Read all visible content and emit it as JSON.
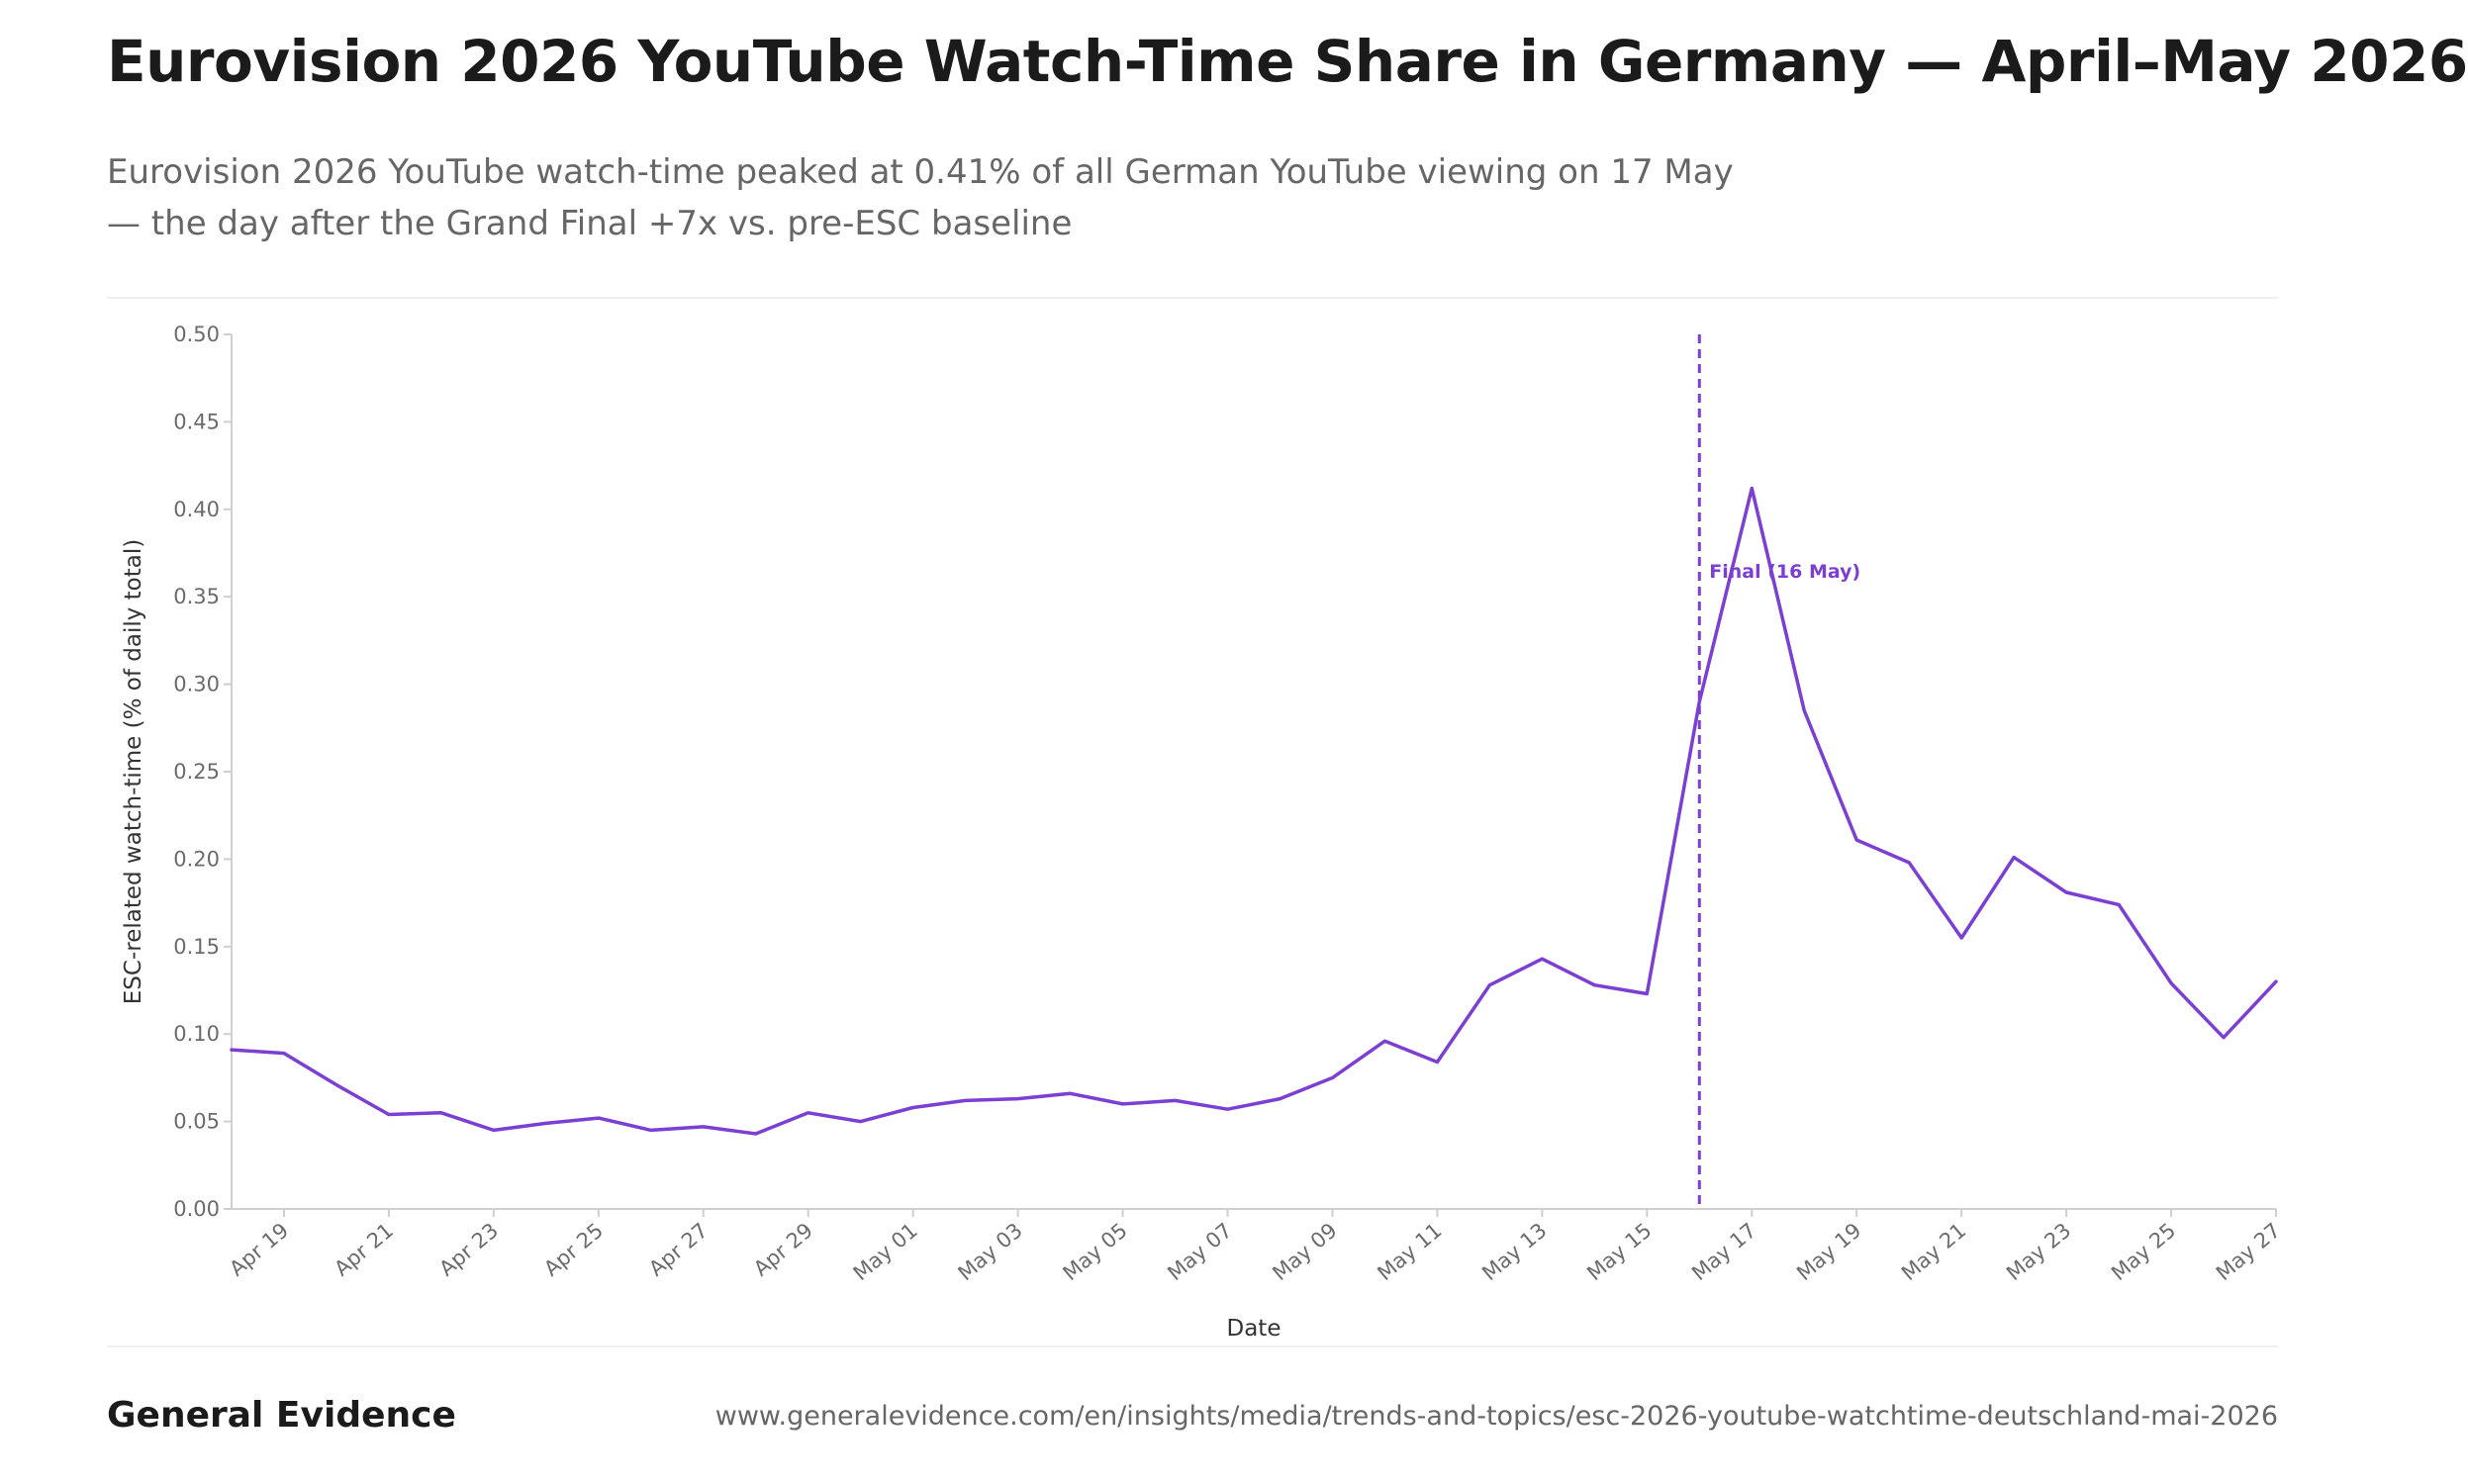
{
  "header": {
    "title": "Eurovision 2026 YouTube Watch-Time Share in Germany — April–May 2026",
    "subtitle": "Eurovision 2026 YouTube watch-time peaked at 0.41% of all German YouTube viewing on 17 May — the day after the Grand Final +7x vs. pre-ESC baseline"
  },
  "footer": {
    "brand": "General Evidence",
    "url": "www.generalevidence.com/en/insights/media/trends-and-topics/esc-2026-youtube-watchtime-deutschland-mai-2026"
  },
  "chart_data": {
    "type": "line",
    "xlabel": "Date",
    "ylabel": "ESC-related watch-time (% of daily total)",
    "ylim": [
      0,
      0.5
    ],
    "yticks": [
      "0.00",
      "0.05",
      "0.10",
      "0.15",
      "0.20",
      "0.25",
      "0.30",
      "0.35",
      "0.40",
      "0.45",
      "0.50"
    ],
    "grid": false,
    "line_color": "#7b3fd4",
    "x_tick_labels": [
      "Apr 19",
      "Apr 21",
      "Apr 23",
      "Apr 25",
      "Apr 27",
      "Apr 29",
      "May 01",
      "May 03",
      "May 05",
      "May 07",
      "May 09",
      "May 11",
      "May 13",
      "May 15",
      "May 17",
      "May 19",
      "May 21",
      "May 23",
      "May 25",
      "May 27"
    ],
    "x": [
      "Apr 18",
      "Apr 19",
      "Apr 20",
      "Apr 21",
      "Apr 22",
      "Apr 23",
      "Apr 24",
      "Apr 25",
      "Apr 26",
      "Apr 27",
      "Apr 28",
      "Apr 29",
      "Apr 30",
      "May 01",
      "May 02",
      "May 03",
      "May 04",
      "May 05",
      "May 06",
      "May 07",
      "May 08",
      "May 09",
      "May 10",
      "May 11",
      "May 12",
      "May 13",
      "May 14",
      "May 15",
      "May 16",
      "May 17",
      "May 18",
      "May 19",
      "May 20",
      "May 21",
      "May 22",
      "May 23",
      "May 24",
      "May 25",
      "May 26",
      "May 27"
    ],
    "series": [
      {
        "values": [
          0.091,
          0.089,
          0.071,
          0.054,
          0.055,
          0.045,
          0.049,
          0.052,
          0.045,
          0.047,
          0.043,
          0.055,
          0.05,
          0.058,
          0.062,
          0.063,
          0.066,
          0.06,
          0.062,
          0.057,
          0.063,
          0.075,
          0.096,
          0.084,
          0.128,
          0.143,
          0.128,
          0.123,
          0.29,
          0.412,
          0.285,
          0.211,
          0.198,
          0.155,
          0.201,
          0.181,
          0.174,
          0.129,
          0.098,
          0.13
        ]
      }
    ],
    "annotations": [
      {
        "x": "May 16",
        "label": "Final (16 May)",
        "style": "dashed-vertical-line"
      }
    ]
  }
}
